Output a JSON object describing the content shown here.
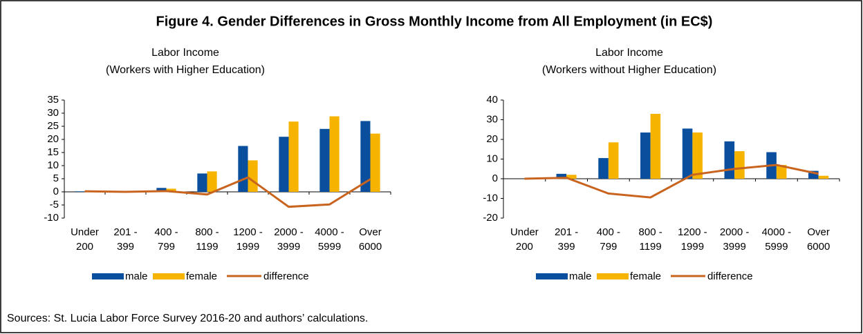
{
  "figure_title": "Figure 4. Gender Differences in Gross Monthly Income from All Employment (in EC$)",
  "source": "Sources: St. Lucia Labor Force Survey 2016-20 and authors’ calculations.",
  "chart_data": [
    {
      "type": "bar",
      "title": [
        "Labor Income",
        "(Workers with Higher Education)"
      ],
      "categories": [
        [
          "Under",
          "200"
        ],
        [
          "201 -",
          "399"
        ],
        [
          "400 -",
          "799"
        ],
        [
          "800 -",
          "1199"
        ],
        [
          "1200 -",
          "1999"
        ],
        [
          "2000 -",
          "3999"
        ],
        [
          "4000 -",
          "5999"
        ],
        [
          "Over",
          "6000"
        ]
      ],
      "series": [
        {
          "name": "male",
          "type": "bar",
          "color": "#0a4f9e",
          "values": [
            0.2,
            0,
            1.5,
            7,
            17.5,
            21,
            24,
            27
          ]
        },
        {
          "name": "female",
          "type": "bar",
          "color": "#f6b400",
          "values": [
            0,
            0,
            1.2,
            7.8,
            12,
            26.8,
            28.8,
            22.2
          ]
        },
        {
          "name": "difference",
          "type": "line",
          "color": "#c8641e",
          "values": [
            0.2,
            0,
            0.3,
            -1,
            5.5,
            -5.7,
            -4.8,
            4.8
          ]
        }
      ],
      "ylim": [
        -10,
        35
      ],
      "yticks": [
        -10,
        -5,
        0,
        5,
        10,
        15,
        20,
        25,
        30,
        35
      ],
      "grid": false,
      "legend": "bottom"
    },
    {
      "type": "bar",
      "title": [
        "Labor Income",
        "(Workers without Higher Education)"
      ],
      "categories": [
        [
          "Under",
          "200"
        ],
        [
          "201 -",
          "399"
        ],
        [
          "400 -",
          "799"
        ],
        [
          "800 -",
          "1199"
        ],
        [
          "1200 -",
          "1999"
        ],
        [
          "2000 -",
          "3999"
        ],
        [
          "4000 -",
          "5999"
        ],
        [
          "Over",
          "6000"
        ]
      ],
      "series": [
        {
          "name": "male",
          "type": "bar",
          "color": "#0a4f9e",
          "values": [
            0,
            2.5,
            10.5,
            23.5,
            25.5,
            19,
            13.5,
            4
          ]
        },
        {
          "name": "female",
          "type": "bar",
          "color": "#f6b400",
          "values": [
            0,
            2,
            18.5,
            33,
            23.5,
            14,
            7,
            1.5
          ]
        },
        {
          "name": "difference",
          "type": "line",
          "color": "#c8641e",
          "values": [
            0,
            0.5,
            -7.5,
            -9.5,
            2,
            5,
            7,
            2.5
          ]
        }
      ],
      "ylim": [
        -20,
        40
      ],
      "yticks": [
        -20,
        -10,
        0,
        10,
        20,
        30,
        40
      ],
      "grid": false,
      "legend": "bottom"
    }
  ]
}
